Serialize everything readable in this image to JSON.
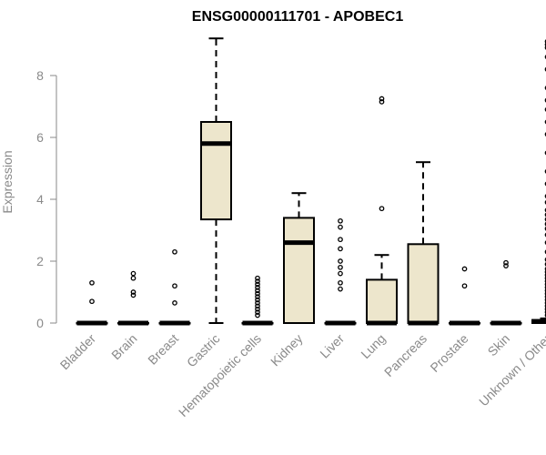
{
  "chart_data": {
    "type": "boxplot",
    "title": "ENSG00000111701 - APOBEC1",
    "ylabel": "Expression",
    "xlabel": "",
    "ylim": [
      0,
      9.3
    ],
    "yticks": [
      0,
      2,
      4,
      6,
      8
    ],
    "grid": false,
    "legend": "none",
    "box_fill": "#ede6cc",
    "categories": [
      "Bladder",
      "Brain",
      "Breast",
      "Gastric",
      "Hematopoietic cells",
      "Kidney",
      "Liver",
      "Lung",
      "Pancreas",
      "Prostate",
      "Skin",
      "Unknown / Other"
    ],
    "boxes": [
      {
        "name": "Bladder",
        "q1": 0,
        "median": 0,
        "q3": 0,
        "whisker_low": 0,
        "whisker_high": 0,
        "outliers": [
          0.7,
          1.3
        ]
      },
      {
        "name": "Brain",
        "q1": 0,
        "median": 0,
        "q3": 0,
        "whisker_low": 0,
        "whisker_high": 0,
        "outliers": [
          0.9,
          1.0,
          1.45,
          1.6
        ]
      },
      {
        "name": "Breast",
        "q1": 0,
        "median": 0,
        "q3": 0,
        "whisker_low": 0,
        "whisker_high": 0,
        "outliers": [
          0.65,
          1.2,
          2.3
        ]
      },
      {
        "name": "Gastric",
        "q1": 3.35,
        "median": 5.8,
        "q3": 6.5,
        "whisker_low": 0,
        "whisker_high": 9.2,
        "outliers": []
      },
      {
        "name": "Hematopoietic cells",
        "q1": 0,
        "median": 0,
        "q3": 0,
        "whisker_low": 0,
        "whisker_high": 0,
        "outliers": [
          0.25,
          0.35,
          0.45,
          0.55,
          0.65,
          0.75,
          0.85,
          0.95,
          1.05,
          1.15,
          1.25,
          1.35,
          1.45
        ]
      },
      {
        "name": "Kidney",
        "q1": 0,
        "median": 2.6,
        "q3": 3.4,
        "whisker_low": 0,
        "whisker_high": 4.2,
        "outliers": []
      },
      {
        "name": "Liver",
        "q1": 0,
        "median": 0,
        "q3": 0,
        "whisker_low": 0,
        "whisker_high": 0,
        "outliers": [
          1.1,
          1.3,
          1.6,
          1.8,
          2.0,
          2.4,
          2.7,
          3.1,
          3.3
        ]
      },
      {
        "name": "Lung",
        "q1": 0,
        "median": 0,
        "q3": 1.4,
        "whisker_low": 0,
        "whisker_high": 2.2,
        "outliers": [
          3.7,
          7.15,
          7.25
        ]
      },
      {
        "name": "Pancreas",
        "q1": 0,
        "median": 0,
        "q3": 2.55,
        "whisker_low": 0,
        "whisker_high": 5.2,
        "outliers": []
      },
      {
        "name": "Prostate",
        "q1": 0,
        "median": 0,
        "q3": 0,
        "whisker_low": 0,
        "whisker_high": 0,
        "outliers": [
          1.2,
          1.75
        ]
      },
      {
        "name": "Skin",
        "q1": 0,
        "median": 0,
        "q3": 0,
        "whisker_low": 0,
        "whisker_high": 0,
        "outliers": [
          1.85,
          1.95
        ]
      },
      {
        "name": "Unknown / Other",
        "q1": 0,
        "median": 0.05,
        "q3": 0.1,
        "whisker_low": 0,
        "whisker_high": 0.15,
        "outliers": [
          0.25,
          0.35,
          0.45,
          0.55,
          0.65,
          0.75,
          0.85,
          0.95,
          1.05,
          1.15,
          1.25,
          1.35,
          1.45,
          1.55,
          1.65,
          1.75,
          1.9,
          2.05,
          2.3,
          2.6,
          2.85,
          3.05,
          3.2,
          3.35,
          3.5,
          3.65,
          3.9,
          4.1,
          4.5,
          4.9,
          5.5,
          6.1,
          6.5,
          6.9,
          7.2,
          7.6,
          8.2,
          8.6,
          8.9,
          9.0,
          9.1
        ]
      }
    ]
  }
}
